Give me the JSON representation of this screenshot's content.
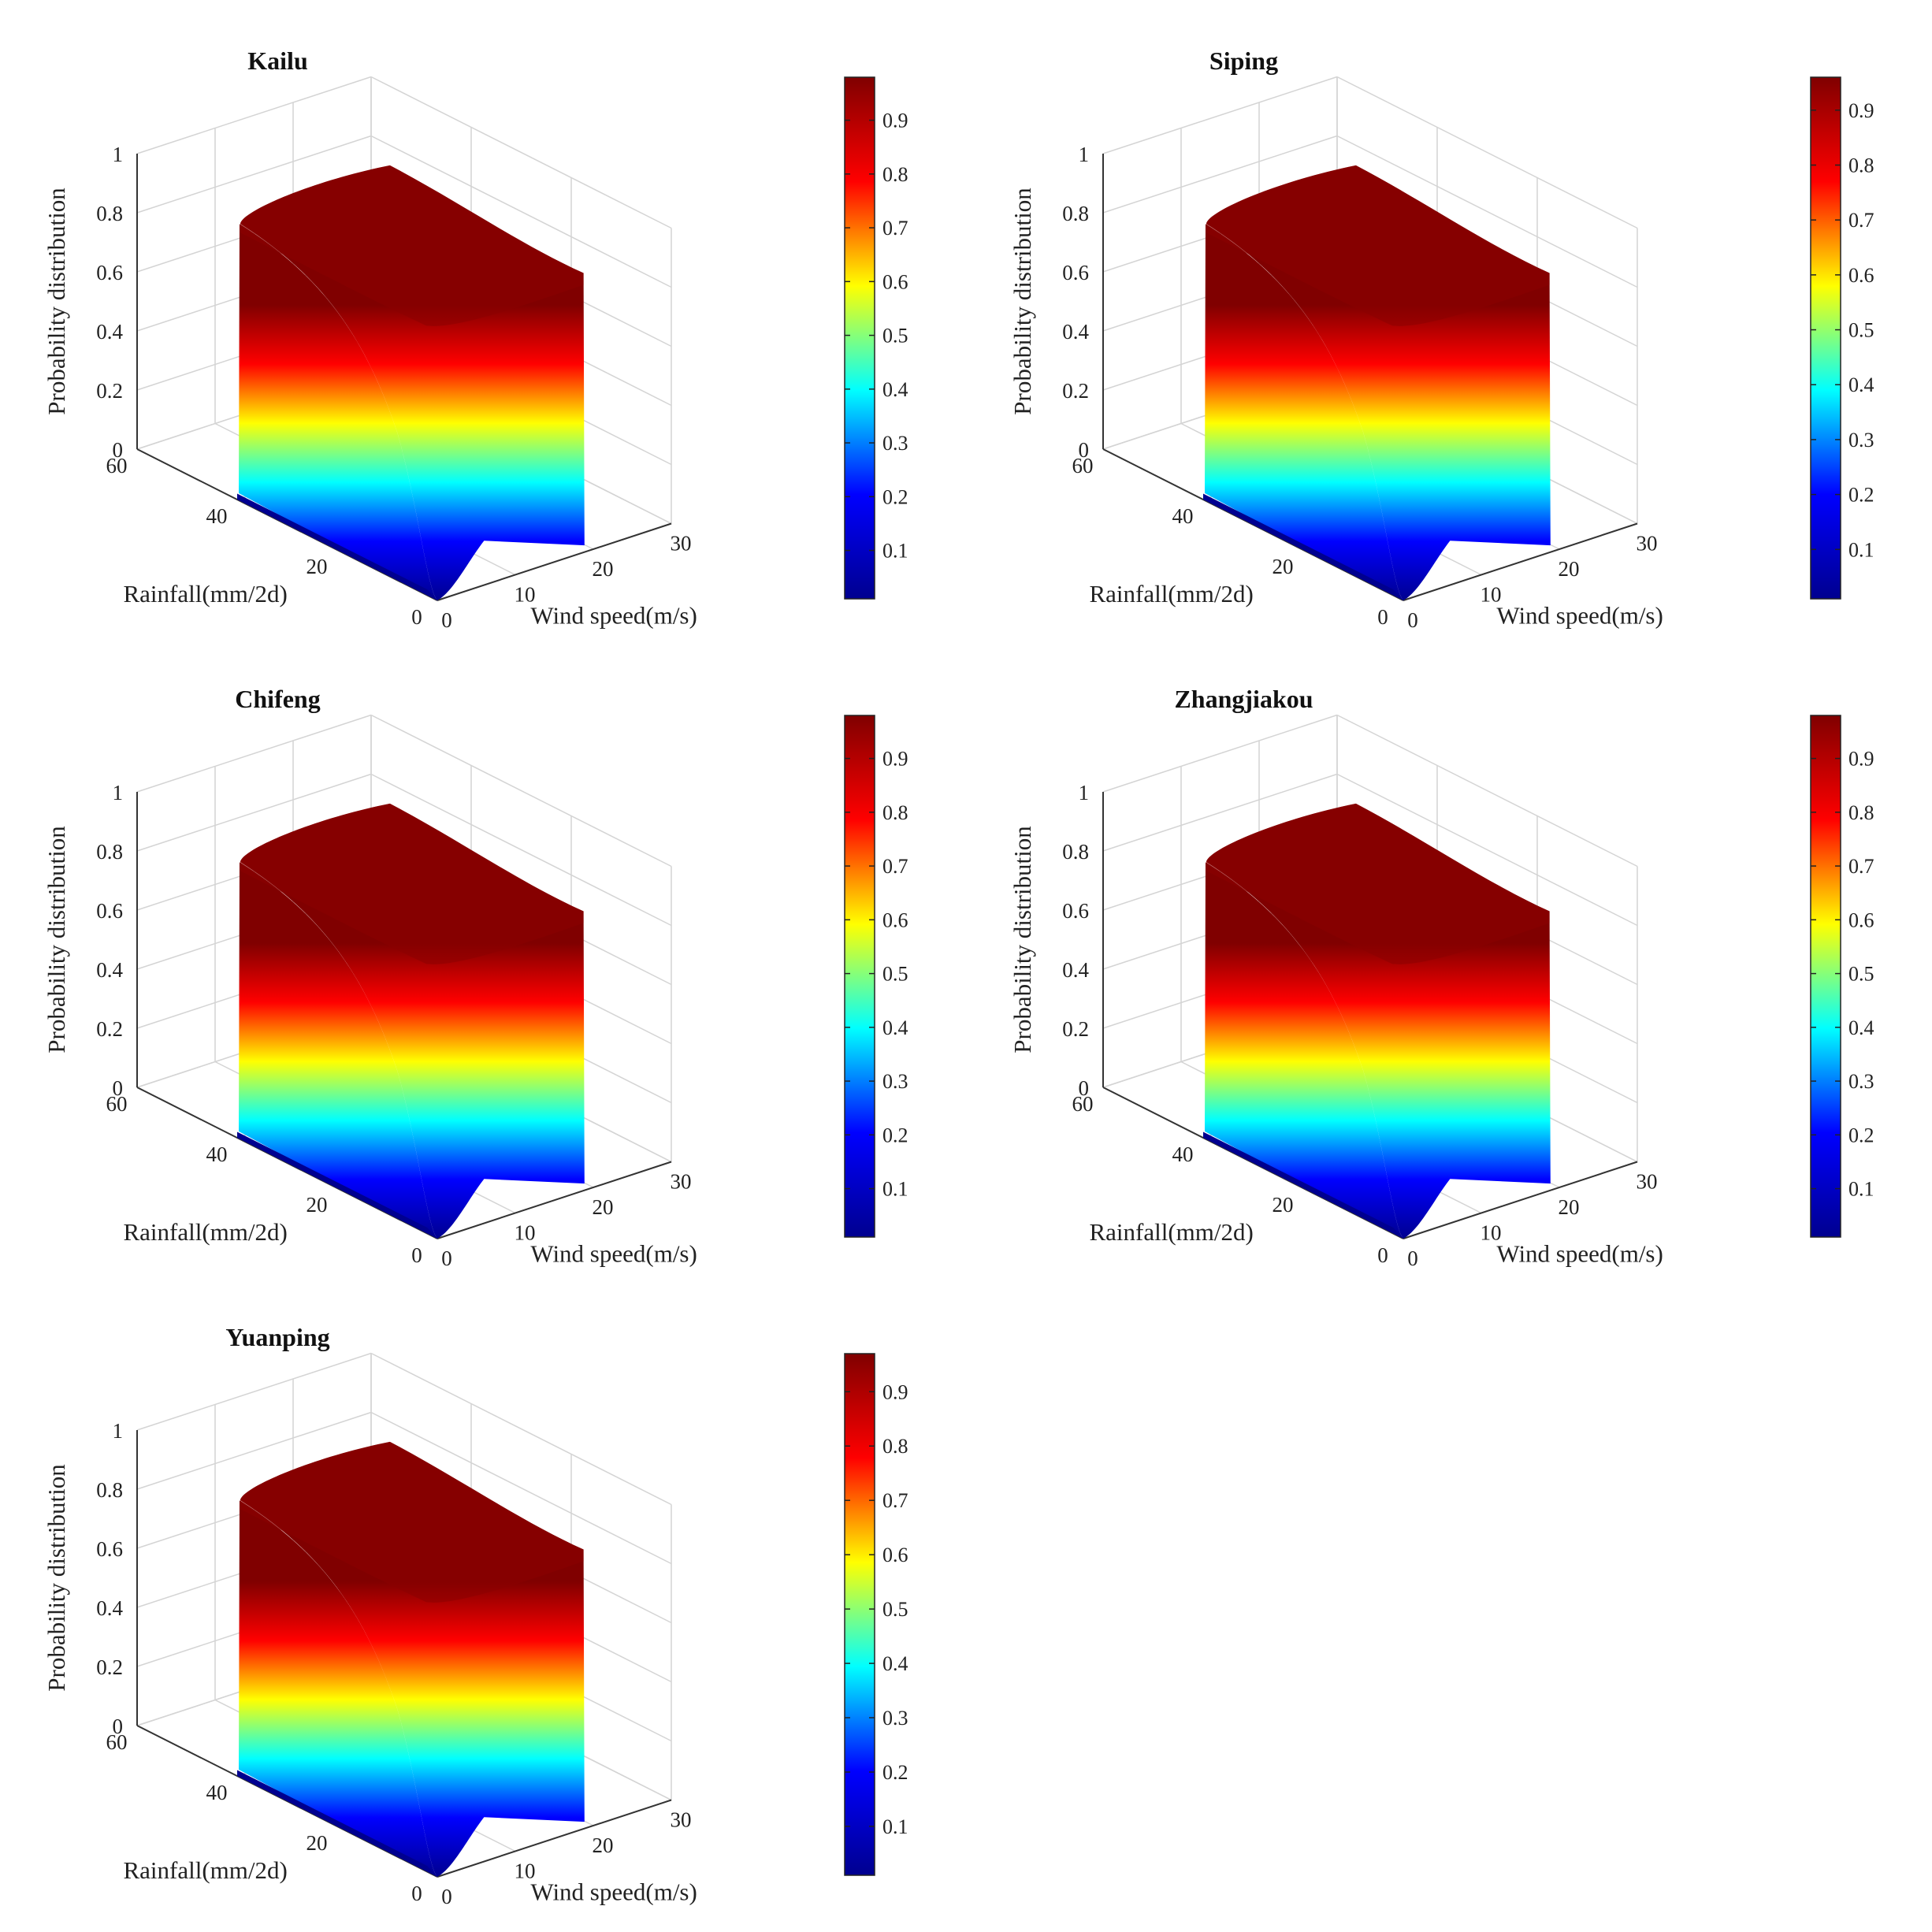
{
  "chart_data": [
    {
      "type": "surface",
      "title": "Kailu",
      "xlabel": "Wind speed(m/s)",
      "ylabel": "Rainfall(mm/2d)",
      "zlabel": "Probability distribution",
      "x_ticks": [
        "0",
        "10",
        "20",
        "30"
      ],
      "y_ticks": [
        "0",
        "20",
        "40",
        "60"
      ],
      "z_ticks": [
        "0",
        "0.2",
        "0.4",
        "0.6",
        "0.8",
        "1"
      ],
      "xlim": [
        0,
        30
      ],
      "ylim": [
        0,
        60
      ],
      "zlim": [
        0,
        1
      ],
      "colorbar_ticks": [
        "0.1",
        "0.2",
        "0.3",
        "0.4",
        "0.5",
        "0.6",
        "0.7",
        "0.8",
        "0.9"
      ],
      "colorbar_range": [
        0.01,
        0.98
      ],
      "colormap": [
        "#00008f",
        "#0000ff",
        "#00ffff",
        "#ffff00",
        "#ff0000",
        "#800000"
      ],
      "surface_extent": {
        "wind_speed_max": 19,
        "rainfall_max": 40
      }
    },
    {
      "type": "surface",
      "title": "Siping",
      "xlabel": "Wind speed(m/s)",
      "ylabel": "Rainfall(mm/2d)",
      "zlabel": "Probability distribution",
      "x_ticks": [
        "0",
        "10",
        "20",
        "30"
      ],
      "y_ticks": [
        "0",
        "20",
        "40",
        "60"
      ],
      "z_ticks": [
        "0",
        "0.2",
        "0.4",
        "0.6",
        "0.8",
        "1"
      ],
      "xlim": [
        0,
        30
      ],
      "ylim": [
        0,
        60
      ],
      "zlim": [
        0,
        1
      ],
      "colorbar_ticks": [
        "0.1",
        "0.2",
        "0.3",
        "0.4",
        "0.5",
        "0.6",
        "0.7",
        "0.8",
        "0.9"
      ],
      "colorbar_range": [
        0.01,
        0.96
      ],
      "colormap": [
        "#00008f",
        "#0000ff",
        "#00ffff",
        "#ffff00",
        "#ff0000",
        "#800000"
      ],
      "surface_extent": {
        "wind_speed_max": 19,
        "rainfall_max": 40
      }
    },
    {
      "type": "surface",
      "title": "Chifeng",
      "xlabel": "Wind speed(m/s)",
      "ylabel": "Rainfall(mm/2d)",
      "zlabel": "Probability distribution",
      "x_ticks": [
        "0",
        "10",
        "20",
        "30"
      ],
      "y_ticks": [
        "0",
        "20",
        "40",
        "60"
      ],
      "z_ticks": [
        "0",
        "0.2",
        "0.4",
        "0.6",
        "0.8",
        "1"
      ],
      "xlim": [
        0,
        30
      ],
      "ylim": [
        0,
        60
      ],
      "zlim": [
        0,
        1
      ],
      "colorbar_ticks": [
        "0.1",
        "0.2",
        "0.3",
        "0.4",
        "0.5",
        "0.6",
        "0.7",
        "0.8",
        "0.9"
      ],
      "colorbar_range": [
        0.01,
        0.98
      ],
      "colormap": [
        "#00008f",
        "#0000ff",
        "#00ffff",
        "#ffff00",
        "#ff0000",
        "#800000"
      ],
      "surface_extent": {
        "wind_speed_max": 19,
        "rainfall_max": 40
      }
    },
    {
      "type": "surface",
      "title": "Zhangjiakou",
      "xlabel": "Wind speed(m/s)",
      "ylabel": "Rainfall(mm/2d)",
      "zlabel": "Probability distribution",
      "x_ticks": [
        "0",
        "10",
        "20",
        "30"
      ],
      "y_ticks": [
        "0",
        "20",
        "40",
        "60"
      ],
      "z_ticks": [
        "0",
        "0.2",
        "0.4",
        "0.6",
        "0.8",
        "1"
      ],
      "xlim": [
        0,
        30
      ],
      "ylim": [
        0,
        60
      ],
      "zlim": [
        0,
        1
      ],
      "colorbar_ticks": [
        "0.1",
        "0.2",
        "0.3",
        "0.4",
        "0.5",
        "0.6",
        "0.7",
        "0.8",
        "0.9"
      ],
      "colorbar_range": [
        0.01,
        0.98
      ],
      "colormap": [
        "#00008f",
        "#0000ff",
        "#00ffff",
        "#ffff00",
        "#ff0000",
        "#800000"
      ],
      "surface_extent": {
        "wind_speed_max": 19,
        "rainfall_max": 40
      }
    },
    {
      "type": "surface",
      "title": "Yuanping",
      "xlabel": "Wind speed(m/s)",
      "ylabel": "Rainfall(mm/2d)",
      "zlabel": "Probability distribution",
      "x_ticks": [
        "0",
        "10",
        "20",
        "30"
      ],
      "y_ticks": [
        "0",
        "20",
        "40",
        "60"
      ],
      "z_ticks": [
        "0",
        "0.2",
        "0.4",
        "0.6",
        "0.8",
        "1"
      ],
      "xlim": [
        0,
        30
      ],
      "ylim": [
        0,
        60
      ],
      "zlim": [
        0,
        1
      ],
      "colorbar_ticks": [
        "0.1",
        "0.2",
        "0.3",
        "0.4",
        "0.5",
        "0.6",
        "0.7",
        "0.8",
        "0.9"
      ],
      "colorbar_range": [
        0.01,
        0.97
      ],
      "colormap": [
        "#00008f",
        "#0000ff",
        "#00ffff",
        "#ffff00",
        "#ff0000",
        "#800000"
      ],
      "surface_extent": {
        "wind_speed_max": 19,
        "rainfall_max": 40
      }
    }
  ]
}
